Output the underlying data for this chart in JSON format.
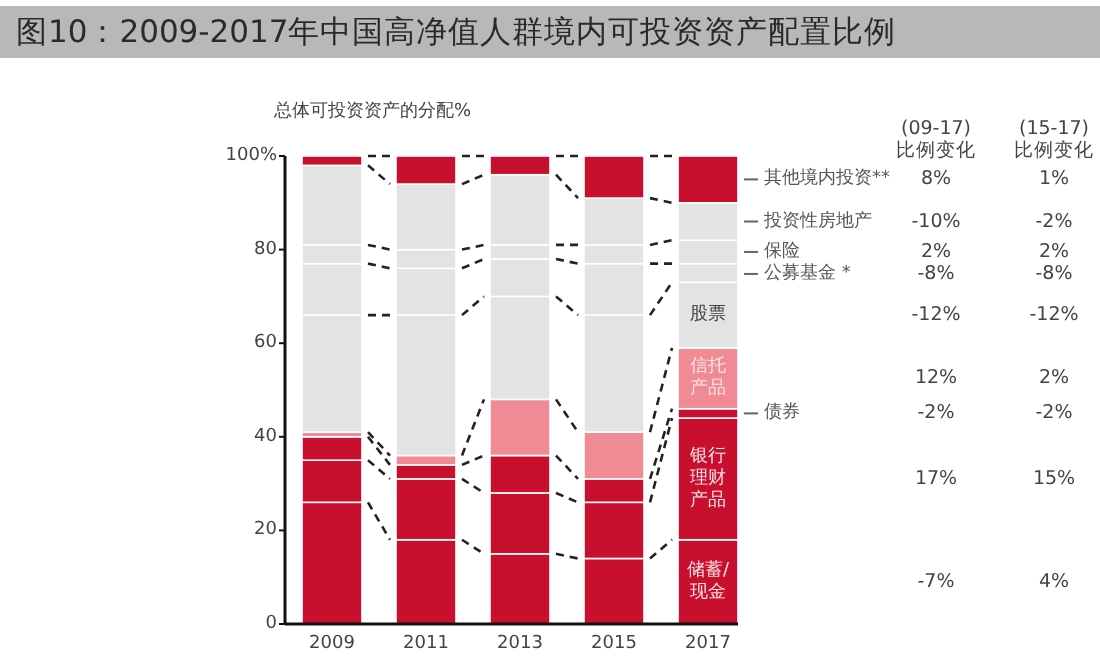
{
  "chart_data": {
    "type": "bar",
    "stacked": true,
    "title": "图10：2009-2017年中国高净值人群境内可投资资产配置比例",
    "ylabel": "总体可投资资产的分配%",
    "categories": [
      "2009",
      "2011",
      "2013",
      "2015",
      "2017"
    ],
    "ylim": [
      0,
      100
    ],
    "yticks": [
      0,
      20,
      40,
      60,
      80,
      {
        "value": 100,
        "label": "100%"
      }
    ],
    "series": [
      {
        "name": "储蓄/现金",
        "color": "#c8102e",
        "values": [
          26,
          18,
          15,
          14,
          18
        ]
      },
      {
        "name": "银行理财产品",
        "color": "#c8102e",
        "values": [
          9,
          13,
          13,
          12,
          26
        ]
      },
      {
        "name": "债券",
        "color": "#c8102e",
        "values": [
          5,
          3,
          8,
          5,
          2
        ]
      },
      {
        "name": "信托产品",
        "color": "#f08a94",
        "values": [
          1,
          2,
          12,
          10,
          13
        ]
      },
      {
        "name": "股票",
        "color": "#e3e3e3",
        "values": [
          25,
          30,
          22,
          25,
          14
        ]
      },
      {
        "name": "公募基金 *",
        "color": "#e3e3e3",
        "values": [
          11,
          10,
          8,
          11,
          4
        ]
      },
      {
        "name": "保险",
        "color": "#e3e3e3",
        "values": [
          4,
          4,
          3,
          4,
          5
        ]
      },
      {
        "name": "投资性房地产",
        "color": "#e3e3e3",
        "values": [
          17,
          14,
          15,
          10,
          8
        ]
      },
      {
        "name": "其他境内投资**",
        "color": "#c8102e",
        "values": [
          2,
          6,
          4,
          9,
          10
        ]
      }
    ],
    "annotations": [
      "(09-17)\n比例变化",
      "(15-17)\n比例变化",
      "8%",
      "1%",
      "-10%",
      "-2%",
      "2%",
      "2%",
      "-8%",
      "-8%",
      "-12%",
      "-12%",
      "12%",
      "2%",
      "-2%",
      "-2%",
      "17%",
      "15%",
      "-7%",
      "4%"
    ]
  }
}
